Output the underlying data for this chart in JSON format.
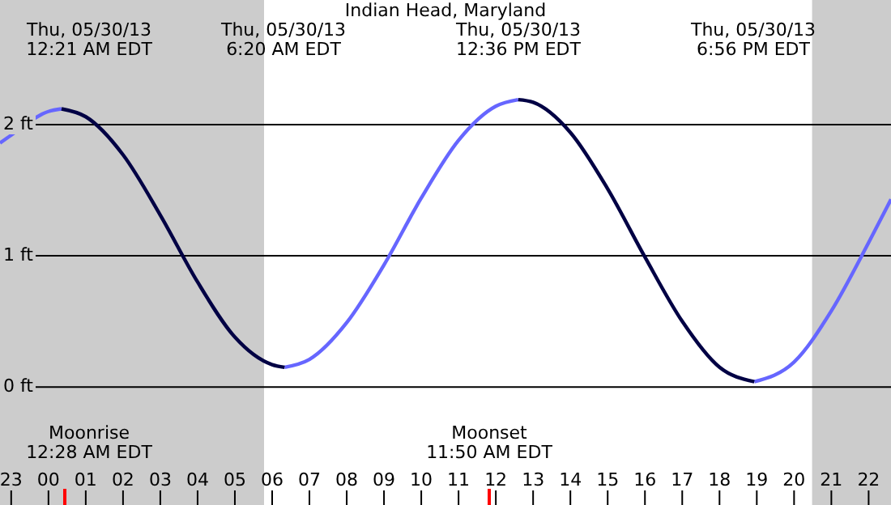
{
  "chart_data": {
    "type": "line",
    "title": "Indian Head, Maryland",
    "series": [
      {
        "color": "#6666ff",
        "x": [
          "--05-29T22:42",
          "--05-29T23:00",
          "--05-30T00:00",
          "--05-30T00:21",
          null,
          "--05-30T06:20",
          "--05-30T07:00",
          "--05-30T08:00",
          "--05-30T09:00",
          "--05-30T10:00",
          "--05-30T11:00",
          "--05-30T12:00",
          "--05-30T12:36",
          null,
          "--05-30T18:56",
          "--05-30T20:00",
          "--05-30T21:00",
          "--05-30T22:00",
          "--05-30T22:36"
        ],
        "values": [
          1.86,
          1.92,
          2.1,
          2.12,
          null,
          0.15,
          0.21,
          0.49,
          0.93,
          1.44,
          1.88,
          2.14,
          2.19,
          null,
          0.04,
          0.19,
          0.58,
          1.1,
          1.43
        ]
      },
      {
        "color": "#000044",
        "x": [
          "--05-30T00:21",
          "--05-30T01:00",
          "--05-30T02:00",
          "--05-30T03:00",
          "--05-30T04:00",
          "--05-30T05:00",
          "--05-30T06:00",
          "--05-30T06:20",
          null,
          "--05-30T12:36",
          "--05-30T13:00",
          "--05-30T14:00",
          "--05-30T15:00",
          "--05-30T16:00",
          "--05-30T17:00",
          "--05-30T18:00",
          "--05-30T18:56"
        ],
        "values": [
          2.12,
          2.06,
          1.77,
          1.31,
          0.8,
          0.38,
          0.17,
          0.15,
          null,
          2.19,
          2.17,
          1.94,
          1.51,
          0.99,
          0.5,
          0.15,
          0.04
        ]
      }
    ],
    "xlim": [
      "--05-29T22:42",
      "--05-30T22:36"
    ],
    "xticks": [
      {
        "value": "--05-29T23:00",
        "label": "23"
      },
      {
        "value": "--05-30T00:00",
        "label": "00"
      },
      {
        "value": "--05-30T01:00",
        "label": "01"
      },
      {
        "value": "--05-30T02:00",
        "label": "02"
      },
      {
        "value": "--05-30T03:00",
        "label": "03"
      },
      {
        "value": "--05-30T04:00",
        "label": "04"
      },
      {
        "value": "--05-30T05:00",
        "label": "05"
      },
      {
        "value": "--05-30T06:00",
        "label": "06"
      },
      {
        "value": "--05-30T07:00",
        "label": "07"
      },
      {
        "value": "--05-30T08:00",
        "label": "08"
      },
      {
        "value": "--05-30T09:00",
        "label": "09"
      },
      {
        "value": "--05-30T10:00",
        "label": "10"
      },
      {
        "value": "--05-30T11:00",
        "label": "11"
      },
      {
        "value": "--05-30T12:00",
        "label": "12"
      },
      {
        "value": "--05-30T13:00",
        "label": "13"
      },
      {
        "value": "--05-30T14:00",
        "label": "14"
      },
      {
        "value": "--05-30T15:00",
        "label": "15"
      },
      {
        "value": "--05-30T16:00",
        "label": "16"
      },
      {
        "value": "--05-30T17:00",
        "label": "17"
      },
      {
        "value": "--05-30T18:00",
        "label": "18"
      },
      {
        "value": "--05-30T19:00",
        "label": "19"
      },
      {
        "value": "--05-30T20:00",
        "label": "20"
      },
      {
        "value": "--05-30T21:00",
        "label": "21"
      },
      {
        "value": "--05-30T22:00",
        "label": "22"
      }
    ],
    "ylim": [
      -0.9,
      2.95
    ],
    "yticks": [
      {
        "value": 0,
        "label": "0 ft"
      },
      {
        "value": 1,
        "label": "1 ft"
      },
      {
        "value": 2,
        "label": "2 ft"
      }
    ],
    "grid": "y",
    "marker": "none",
    "line_style": "solid",
    "bands": [
      {
        "axis": "x",
        "from": "--05-29T22:42",
        "to": "--05-30T05:47",
        "color": "#cccccc"
      },
      {
        "axis": "x",
        "from": "--05-30T20:29",
        "to": "--05-30T22:36",
        "color": "#cccccc"
      }
    ],
    "annotations": [
      "Thu, 05/30/13\n12:21 AM EDT",
      "Thu, 05/30/13\n6:20 AM EDT",
      "Thu, 05/30/13\n12:36 PM EDT",
      "Thu, 05/30/13\n6:56 PM EDT",
      "Moonrise\n12:28 AM EDT",
      "Moonset\n11:50 AM EDT"
    ]
  }
}
